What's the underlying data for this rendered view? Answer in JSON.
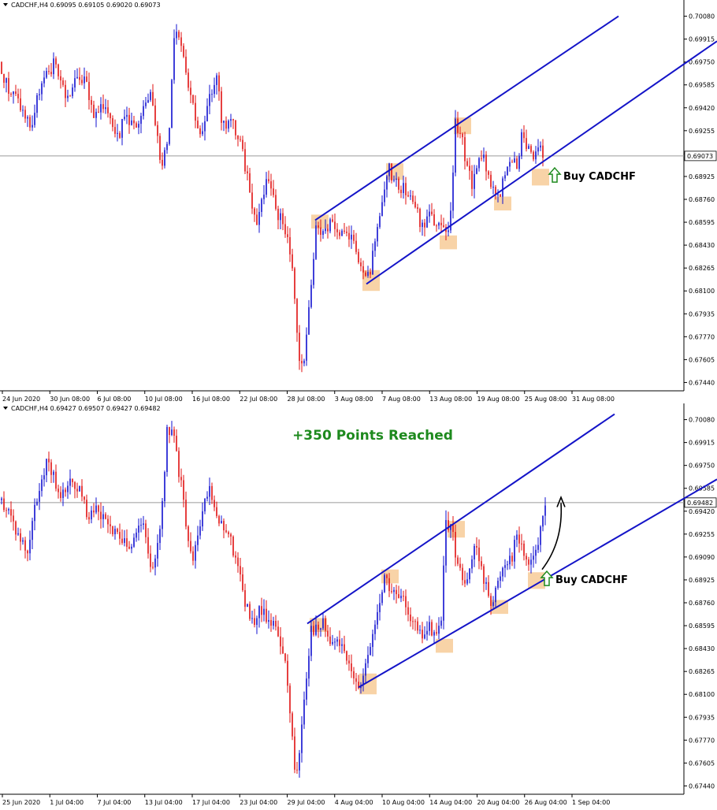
{
  "colors": {
    "bull": "#1010d0",
    "bear": "#e01010",
    "channel": "#1414c8",
    "zone": "#f5c48a",
    "price_line": "#9a9a9a",
    "axis": "#000000",
    "annotation_green": "#1e8a1e"
  },
  "chart_data": [
    {
      "type": "candlestick",
      "symbol_header": "CADCHF,H4  0.69095 0.69105 0.69020 0.69073",
      "price_ticks": [
        "0.70080",
        "0.69915",
        "0.69750",
        "0.69585",
        "0.69420",
        "0.69255",
        "0.69090",
        "0.68925",
        "0.68760",
        "0.68595",
        "0.68430",
        "0.68265",
        "0.68100",
        "0.67935",
        "0.67770",
        "0.67605",
        "0.67440"
      ],
      "ylim": [
        0.6738,
        0.7014
      ],
      "current_price": 0.69073,
      "current_price_label": "0.69073",
      "time_labels": [
        "24 Jun 2020",
        "30 Jun 08:00",
        "6 Jul 08:00",
        "10 Jul 08:00",
        "16 Jul 08:00",
        "22 Jul 08:00",
        "28 Jul 08:00",
        "3 Aug 08:00",
        "7 Aug 08:00",
        "13 Aug 08:00",
        "19 Aug 08:00",
        "25 Aug 08:00",
        "31 Aug 08:00"
      ],
      "price_path": [
        [
          0,
          0.6975
        ],
        [
          10,
          0.6955
        ],
        [
          20,
          0.695
        ],
        [
          30,
          0.6938
        ],
        [
          40,
          0.6928
        ],
        [
          50,
          0.6955
        ],
        [
          70,
          0.6975
        ],
        [
          85,
          0.6948
        ],
        [
          95,
          0.696
        ],
        [
          100,
          0.6965
        ],
        [
          110,
          0.6958
        ],
        [
          120,
          0.6935
        ],
        [
          135,
          0.6945
        ],
        [
          150,
          0.6922
        ],
        [
          160,
          0.6938
        ],
        [
          175,
          0.6925
        ],
        [
          185,
          0.6945
        ],
        [
          192,
          0.6958
        ],
        [
          205,
          0.6895
        ],
        [
          215,
          0.693
        ],
        [
          222,
          0.7005
        ],
        [
          230,
          0.699
        ],
        [
          240,
          0.6958
        ],
        [
          255,
          0.6918
        ],
        [
          265,
          0.6945
        ],
        [
          275,
          0.6968
        ],
        [
          282,
          0.693
        ],
        [
          295,
          0.6932
        ],
        [
          305,
          0.6915
        ],
        [
          315,
          0.689
        ],
        [
          325,
          0.6858
        ],
        [
          330,
          0.687
        ],
        [
          340,
          0.6895
        ],
        [
          350,
          0.687
        ],
        [
          360,
          0.6855
        ],
        [
          368,
          0.684
        ],
        [
          375,
          0.68
        ],
        [
          380,
          0.676
        ],
        [
          385,
          0.675
        ],
        [
          390,
          0.6785
        ],
        [
          395,
          0.6815
        ],
        [
          402,
          0.686
        ],
        [
          410,
          0.685
        ],
        [
          420,
          0.686
        ],
        [
          430,
          0.6845
        ],
        [
          440,
          0.6855
        ],
        [
          450,
          0.684
        ],
        [
          460,
          0.6825
        ],
        [
          465,
          0.6815
        ],
        [
          470,
          0.6825
        ],
        [
          478,
          0.685
        ],
        [
          485,
          0.687
        ],
        [
          493,
          0.69
        ],
        [
          500,
          0.689
        ],
        [
          510,
          0.6885
        ],
        [
          520,
          0.688
        ],
        [
          528,
          0.687
        ],
        [
          535,
          0.6855
        ],
        [
          545,
          0.6865
        ],
        [
          555,
          0.6858
        ],
        [
          565,
          0.685
        ],
        [
          572,
          0.6865
        ],
        [
          578,
          0.693
        ],
        [
          585,
          0.6925
        ],
        [
          592,
          0.69
        ],
        [
          600,
          0.6885
        ],
        [
          610,
          0.6912
        ],
        [
          618,
          0.6898
        ],
        [
          625,
          0.6885
        ],
        [
          632,
          0.6878
        ],
        [
          640,
          0.689
        ],
        [
          648,
          0.6905
        ],
        [
          656,
          0.69
        ],
        [
          662,
          0.6922
        ],
        [
          670,
          0.6915
        ],
        [
          677,
          0.6905
        ],
        [
          685,
          0.6915
        ],
        [
          690,
          0.6907
        ]
      ],
      "channel_upper": [
        [
          0.6861,
          400
        ],
        [
          0.7008,
          785
        ]
      ],
      "channel_lower": [
        [
          0.6815,
          465
        ],
        [
          0.699,
          910
        ]
      ],
      "zones": [
        [
          395,
          0.6865,
          0.6855
        ],
        [
          460,
          0.6825,
          0.681
        ],
        [
          490,
          0.6902,
          0.689
        ],
        [
          558,
          0.685,
          0.684
        ],
        [
          576,
          0.6935,
          0.6923
        ],
        [
          627,
          0.6878,
          0.6868
        ],
        [
          675,
          0.6898,
          0.6886
        ]
      ],
      "annotations": [
        {
          "text": "Buy CADCHF",
          "x": 715,
          "y": 0.6893
        }
      ]
    },
    {
      "type": "candlestick",
      "symbol_header": "CADCHF,H4  0.69427 0.69507 0.69427 0.69482",
      "price_ticks": [
        "0.70080",
        "0.69915",
        "0.69750",
        "0.69585",
        "0.69420",
        "0.69255",
        "0.69090",
        "0.68925",
        "0.68760",
        "0.68595",
        "0.68430",
        "0.68265",
        "0.68100",
        "0.67935",
        "0.67770",
        "0.67605",
        "0.67440"
      ],
      "ylim": [
        0.6738,
        0.7014
      ],
      "current_price": 0.69482,
      "current_price_label": "0.69482",
      "time_labels": [
        "25 Jun 2020",
        "1 Jul 04:00",
        "7 Jul 04:00",
        "13 Jul 04:00",
        "17 Jul 04:00",
        "23 Jul 04:00",
        "29 Jul 04:00",
        "4 Aug 04:00",
        "10 Aug 04:00",
        "14 Aug 04:00",
        "20 Aug 04:00",
        "26 Aug 04:00",
        "1 Sep 04:00"
      ],
      "price_path": [
        [
          0,
          0.695
        ],
        [
          10,
          0.6945
        ],
        [
          20,
          0.693
        ],
        [
          35,
          0.6915
        ],
        [
          45,
          0.6945
        ],
        [
          60,
          0.6978
        ],
        [
          75,
          0.6955
        ],
        [
          90,
          0.6965
        ],
        [
          100,
          0.696
        ],
        [
          110,
          0.694
        ],
        [
          125,
          0.6945
        ],
        [
          135,
          0.693
        ],
        [
          150,
          0.6925
        ],
        [
          165,
          0.6915
        ],
        [
          180,
          0.6935
        ],
        [
          192,
          0.6895
        ],
        [
          205,
          0.6935
        ],
        [
          212,
          0.7005
        ],
        [
          220,
          0.6995
        ],
        [
          230,
          0.696
        ],
        [
          243,
          0.6905
        ],
        [
          255,
          0.6935
        ],
        [
          266,
          0.6965
        ],
        [
          275,
          0.6935
        ],
        [
          290,
          0.6925
        ],
        [
          300,
          0.6905
        ],
        [
          310,
          0.688
        ],
        [
          320,
          0.686
        ],
        [
          330,
          0.687
        ],
        [
          345,
          0.6862
        ],
        [
          355,
          0.685
        ],
        [
          362,
          0.683
        ],
        [
          368,
          0.68
        ],
        [
          373,
          0.676
        ],
        [
          378,
          0.6752
        ],
        [
          383,
          0.679
        ],
        [
          390,
          0.683
        ],
        [
          395,
          0.6858
        ],
        [
          403,
          0.6855
        ],
        [
          410,
          0.686
        ],
        [
          420,
          0.6845
        ],
        [
          430,
          0.6848
        ],
        [
          440,
          0.6832
        ],
        [
          450,
          0.6825
        ],
        [
          457,
          0.6813
        ],
        [
          463,
          0.6825
        ],
        [
          472,
          0.685
        ],
        [
          480,
          0.687
        ],
        [
          488,
          0.6895
        ],
        [
          495,
          0.6885
        ],
        [
          505,
          0.6878
        ],
        [
          515,
          0.6875
        ],
        [
          525,
          0.686
        ],
        [
          535,
          0.685
        ],
        [
          545,
          0.6858
        ],
        [
          555,
          0.6852
        ],
        [
          560,
          0.6865
        ],
        [
          566,
          0.6935
        ],
        [
          573,
          0.693
        ],
        [
          582,
          0.69
        ],
        [
          592,
          0.6885
        ],
        [
          602,
          0.692
        ],
        [
          610,
          0.69
        ],
        [
          618,
          0.6885
        ],
        [
          625,
          0.6875
        ],
        [
          632,
          0.689
        ],
        [
          640,
          0.6905
        ],
        [
          650,
          0.691
        ],
        [
          656,
          0.6925
        ],
        [
          664,
          0.6912
        ],
        [
          672,
          0.6905
        ],
        [
          680,
          0.6915
        ],
        [
          688,
          0.6935
        ],
        [
          692,
          0.6948
        ]
      ],
      "channel_upper": [
        [
          0.6861,
          390
        ],
        [
          0.7012,
          780
        ]
      ],
      "channel_lower": [
        [
          0.6815,
          455
        ],
        [
          0.6965,
          910
        ]
      ],
      "zones": [
        [
          393,
          0.6865,
          0.6855
        ],
        [
          456,
          0.6825,
          0.681
        ],
        [
          484,
          0.69,
          0.689
        ],
        [
          553,
          0.685,
          0.684
        ],
        [
          568,
          0.6935,
          0.6923
        ],
        [
          623,
          0.6878,
          0.6868
        ],
        [
          670,
          0.6898,
          0.6886
        ]
      ],
      "annotations": [
        {
          "text": "Buy CADCHF",
          "x": 705,
          "y": 0.6893
        },
        {
          "text": "+350 Points Reached",
          "x": 473,
          "y": 0.6997
        }
      ]
    }
  ]
}
